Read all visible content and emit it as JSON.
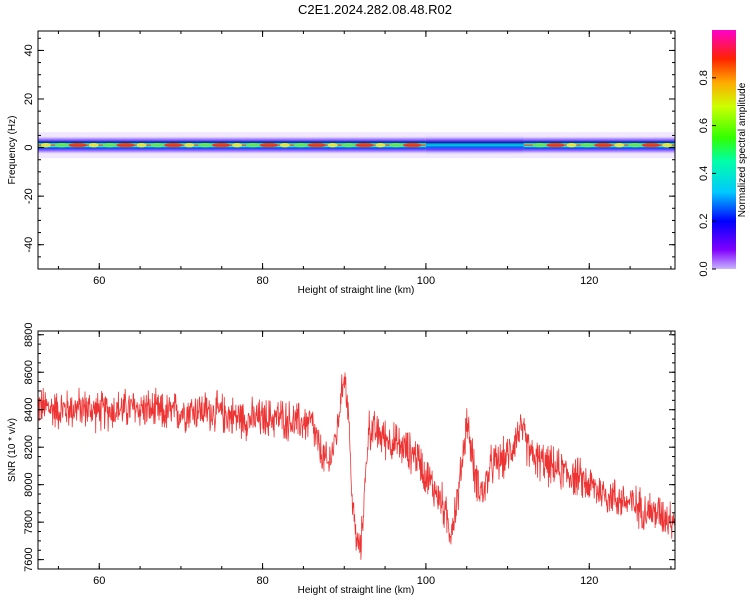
{
  "title": "C2E1.2024.282.08.48.R02",
  "chart_data": [
    {
      "type": "heatmap",
      "title": "C2E1.2024.282.08.48.R02",
      "xlabel": "Height of straight line (km)",
      "ylabel": "Frequency (Hz)",
      "xlim": [
        52.5,
        130.5
      ],
      "ylim": [
        -50,
        48
      ],
      "x_ticks": [
        "60",
        "80",
        "100",
        "120"
      ],
      "y_ticks": [
        "-40",
        "-20",
        "0",
        "20",
        "40"
      ],
      "colorbar": {
        "label": "Normalized spectral amplitude",
        "range": [
          0,
          1
        ],
        "ticks": [
          "0.0",
          "0.2",
          "0.4",
          "0.6",
          "0.8"
        ]
      },
      "band": {
        "center_frequency": 1,
        "segments": [
          {
            "x_start": 52.5,
            "x_end": 100,
            "peak_amplitude": 0.95
          },
          {
            "x_start": 100,
            "x_end": 112,
            "peak_amplitude": 0.45
          },
          {
            "x_start": 112,
            "x_end": 130.5,
            "peak_amplitude": 0.85
          }
        ]
      }
    },
    {
      "type": "line",
      "xlabel": "Height of straight line (km)",
      "ylabel": "SNR (10 * v/v)",
      "xlim": [
        52.5,
        130.5
      ],
      "ylim": [
        7550,
        8820
      ],
      "x_ticks": [
        "60",
        "80",
        "100",
        "120"
      ],
      "y_ticks": [
        "7600",
        "7800",
        "8000",
        "8200",
        "8400",
        "8600",
        "8800"
      ],
      "color": "#ee3333",
      "series": [
        {
          "x": [
            52.5,
            55,
            58,
            60,
            62,
            65,
            68,
            70,
            72,
            75,
            78,
            80,
            82,
            84,
            86,
            87,
            88,
            89,
            90,
            90.5,
            91,
            91.5,
            92,
            93,
            95,
            97,
            99,
            100,
            101,
            102,
            103,
            104,
            105,
            106,
            107,
            108,
            110,
            111.5,
            113,
            115,
            118,
            120,
            122,
            125,
            128,
            130.5
          ],
          "y": [
            8420,
            8400,
            8410,
            8390,
            8400,
            8410,
            8380,
            8390,
            8400,
            8380,
            8350,
            8350,
            8360,
            8330,
            8330,
            8180,
            8100,
            8250,
            8600,
            8400,
            7900,
            7700,
            7650,
            8300,
            8250,
            8200,
            8150,
            8050,
            7980,
            7900,
            7750,
            7950,
            8350,
            8050,
            7950,
            8100,
            8150,
            8300,
            8150,
            8100,
            8050,
            8000,
            7950,
            7900,
            7850,
            7820
          ]
        }
      ]
    }
  ]
}
